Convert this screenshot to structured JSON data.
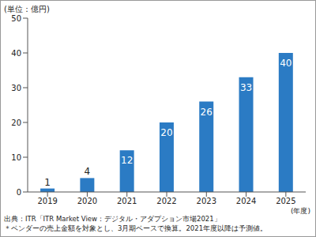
{
  "chart_data": {
    "type": "bar",
    "y_label": "(単位：億円)",
    "x_label": "(年度)",
    "categories": [
      "2019",
      "2020",
      "2021",
      "2022",
      "2023",
      "2024",
      "2025"
    ],
    "values": [
      1,
      4,
      12,
      20,
      26,
      33,
      40
    ],
    "color": "#2b7bc4",
    "ylim": [
      0,
      50
    ],
    "yticks": [
      0,
      10,
      20,
      30,
      40,
      50
    ],
    "grid": false,
    "data_labels": true,
    "annotations": [
      "出典：ITR「ITR Market View：デジタル・アダプション市場2021」",
      "＊ベンダーの売上金額を対象とし、3月期ベースで換算。2021年度以降は予測値。"
    ]
  }
}
